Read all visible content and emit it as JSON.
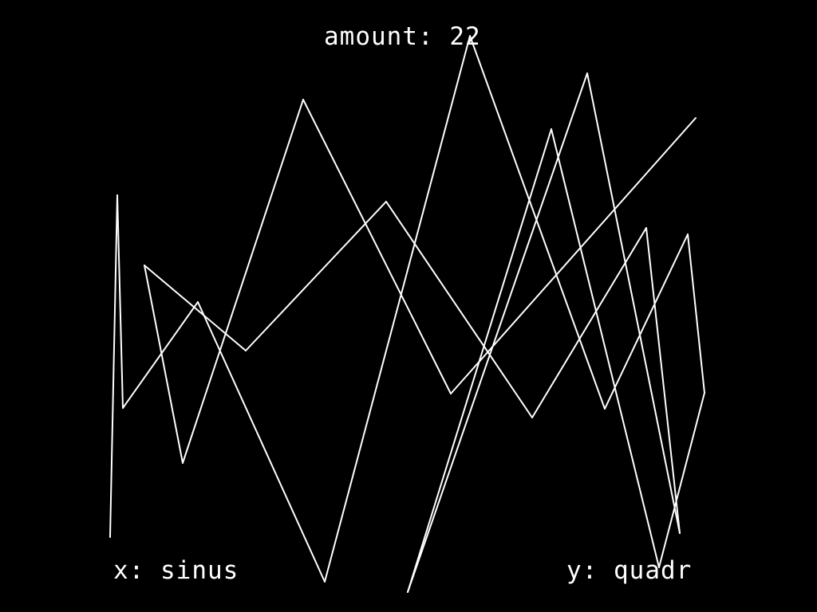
{
  "hud": {
    "amount_label": "amount:",
    "amount_value": "22",
    "x_label": "x:",
    "x_function": "sinus",
    "y_label": "y:",
    "y_function": "quadr"
  },
  "colors": {
    "background": "#000000",
    "foreground": "#ffffff"
  },
  "figure": {
    "vertices": [
      [
        138,
        674
      ],
      [
        147,
        245
      ],
      [
        154,
        512
      ],
      [
        248,
        379
      ],
      [
        407,
        730
      ],
      [
        589,
        45
      ],
      [
        758,
        513
      ],
      [
        862,
        294
      ],
      [
        883,
        493
      ],
      [
        826,
        712
      ],
      [
        691,
        162
      ],
      [
        511,
        743
      ],
      [
        736,
        92
      ],
      [
        852,
        669
      ],
      [
        810,
        286
      ],
      [
        667,
        524
      ],
      [
        484,
        253
      ],
      [
        308,
        440
      ],
      [
        181,
        333
      ],
      [
        229,
        581
      ],
      [
        380,
        125
      ],
      [
        565,
        494
      ],
      [
        872,
        148
      ]
    ]
  }
}
